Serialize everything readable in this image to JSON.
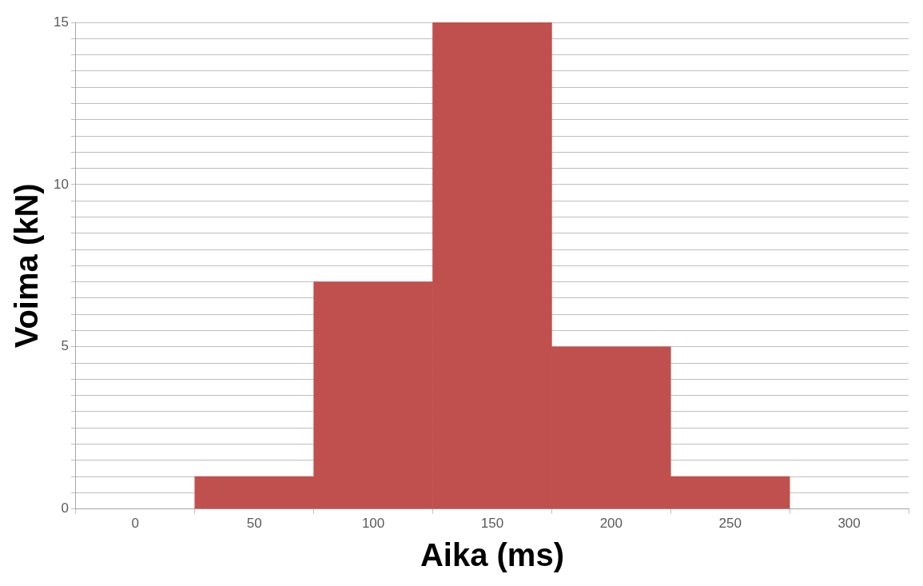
{
  "chart_data": {
    "type": "histogram",
    "xlabel": "Aika (ms)",
    "ylabel": "Voima (kN)",
    "bins": [
      25,
      75,
      125,
      175,
      225,
      275
    ],
    "values": [
      1,
      7,
      15,
      5,
      1
    ],
    "color": "#c0504d",
    "xlim": [
      -25,
      325
    ],
    "xticks": [
      0,
      50,
      100,
      150,
      200,
      250,
      300
    ],
    "ylim": [
      0,
      15
    ],
    "yticks": [
      0,
      {
        "value": 0.5,
        "label": null
      },
      {
        "value": 1,
        "label": null
      },
      {
        "value": 1.5,
        "label": null
      },
      {
        "value": 2,
        "label": null
      },
      {
        "value": 2.5,
        "label": null
      },
      {
        "value": 3,
        "label": null
      },
      {
        "value": 3.5,
        "label": null
      },
      {
        "value": 4,
        "label": null
      },
      {
        "value": 4.5,
        "label": null
      },
      5,
      {
        "value": 5.5,
        "label": null
      },
      {
        "value": 6,
        "label": null
      },
      {
        "value": 6.5,
        "label": null
      },
      {
        "value": 7,
        "label": null
      },
      {
        "value": 7.5,
        "label": null
      },
      {
        "value": 8,
        "label": null
      },
      {
        "value": 8.5,
        "label": null
      },
      {
        "value": 9,
        "label": null
      },
      {
        "value": 9.5,
        "label": null
      },
      10,
      {
        "value": 10.5,
        "label": null
      },
      {
        "value": 11,
        "label": null
      },
      {
        "value": 11.5,
        "label": null
      },
      {
        "value": 12,
        "label": null
      },
      {
        "value": 12.5,
        "label": null
      },
      {
        "value": 13,
        "label": null
      },
      {
        "value": 13.5,
        "label": null
      },
      {
        "value": 14,
        "label": null
      },
      {
        "value": 14.5,
        "label": null
      },
      15
    ],
    "grid": "y",
    "legend": false
  }
}
